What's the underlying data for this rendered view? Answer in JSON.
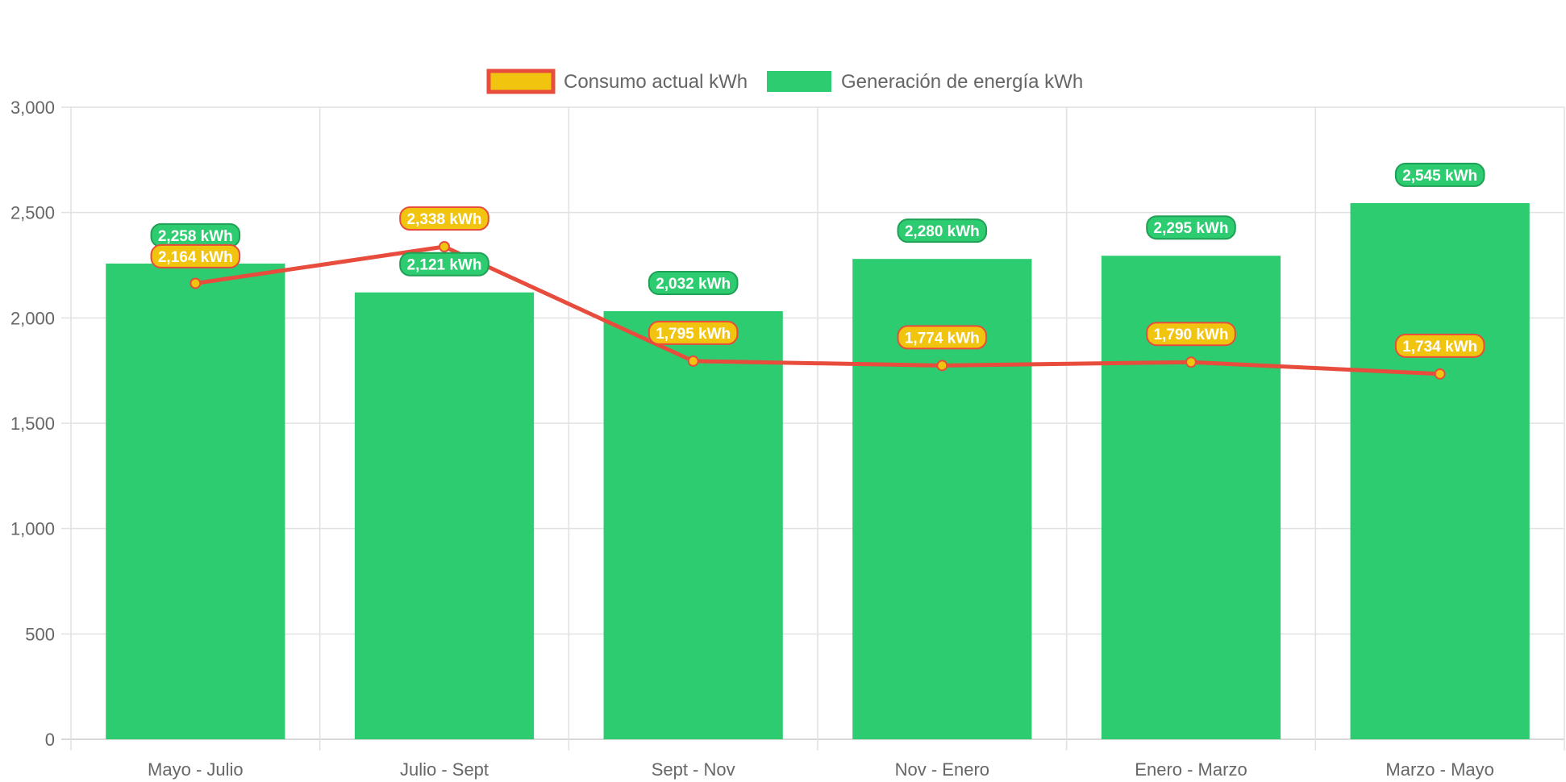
{
  "chart_data": {
    "type": "bar",
    "categories": [
      "Mayo - Julio",
      "Julio - Sept",
      "Sept - Nov",
      "Nov - Enero",
      "Enero - Marzo",
      "Marzo - Mayo"
    ],
    "ylim": [
      0,
      3000
    ],
    "yticks": [
      0,
      500,
      1000,
      1500,
      2000,
      2500,
      3000
    ],
    "ytick_labels": [
      "0",
      "500",
      "1,000",
      "1,500",
      "2,000",
      "2,500",
      "3,000"
    ],
    "grid": true,
    "legend_position": "top-center",
    "series": [
      {
        "name": "Consumo actual kWh",
        "type": "line",
        "color": "#f1c40f",
        "border_color": "#e74c3c",
        "values": [
          2164,
          2338,
          1795,
          1774,
          1790,
          1734
        ],
        "labels": [
          "2,164 kWh",
          "2,338 kWh",
          "1,795 kWh",
          "1,774 kWh",
          "1,790 kWh",
          "1,734 kWh"
        ]
      },
      {
        "name": "Generación de energía kWh",
        "type": "bar",
        "color": "#2ecc71",
        "values": [
          2258,
          2121,
          2032,
          2280,
          2295,
          2545
        ],
        "labels": [
          "2,258 kWh",
          "2,121 kWh",
          "2,032 kWh",
          "2,280 kWh",
          "2,295 kWh",
          "2,545 kWh"
        ]
      }
    ]
  }
}
